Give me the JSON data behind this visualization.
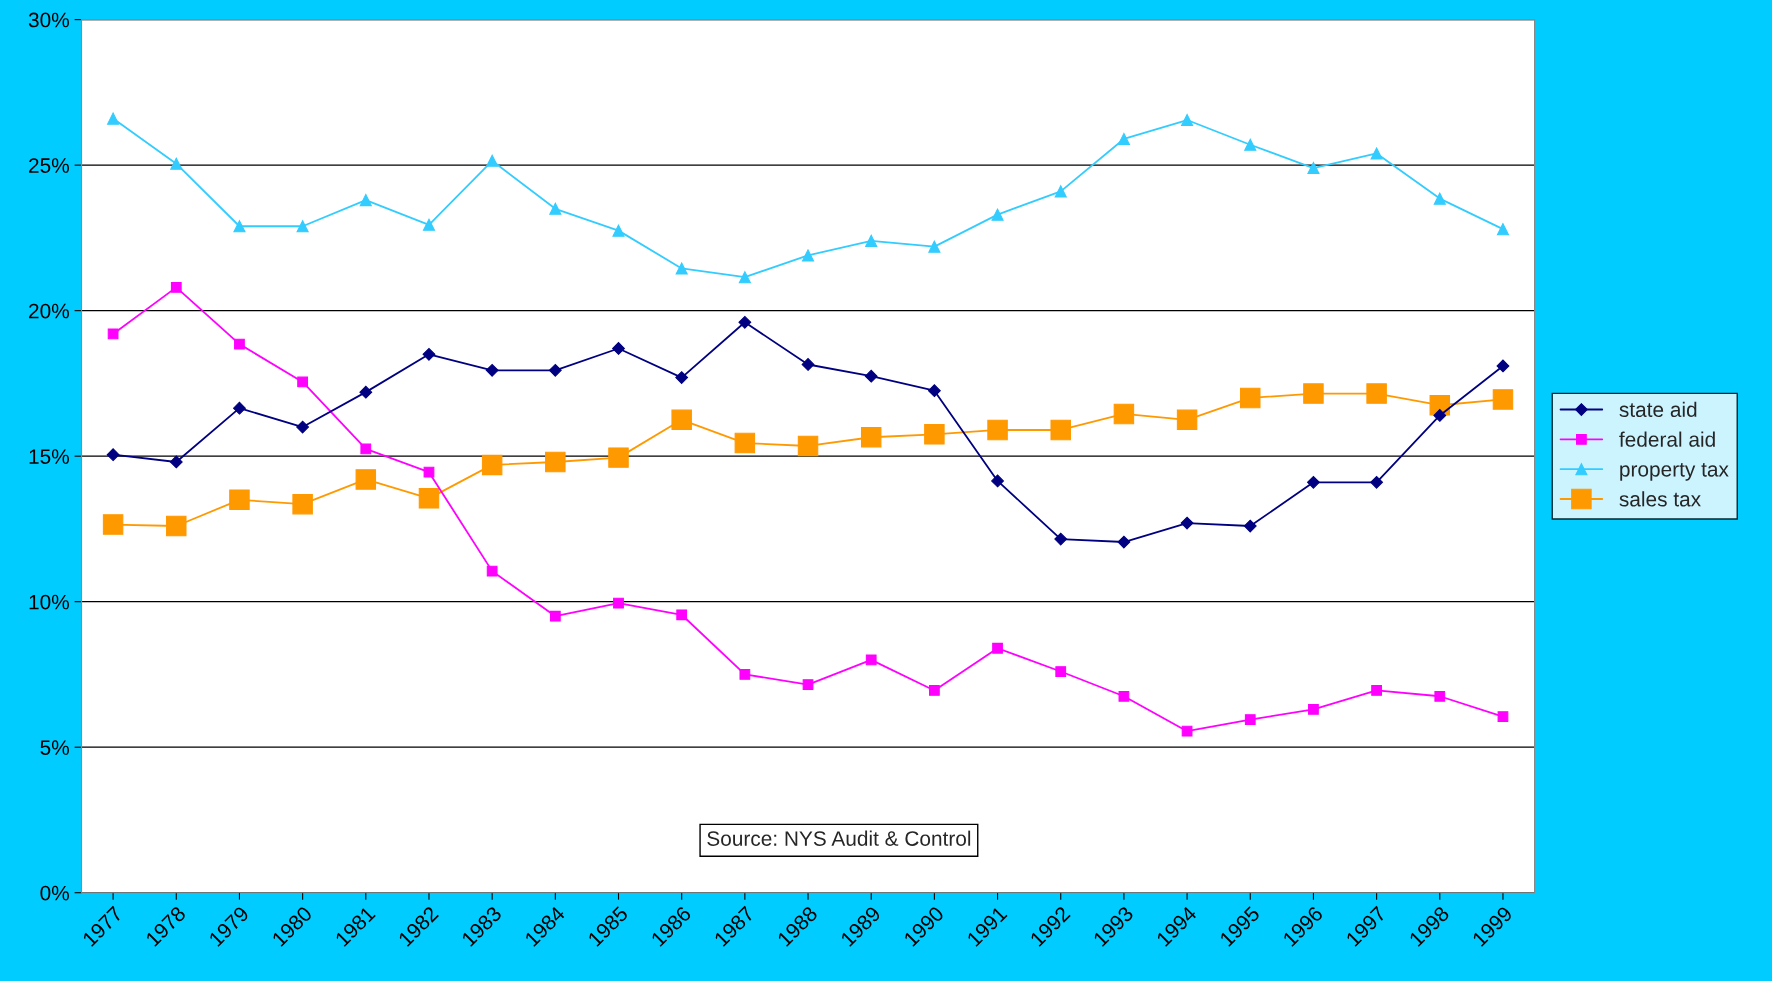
{
  "chart_data": {
    "type": "line",
    "categories": [
      "1977",
      "1978",
      "1979",
      "1980",
      "1981",
      "1982",
      "1983",
      "1984",
      "1985",
      "1986",
      "1987",
      "1988",
      "1989",
      "1990",
      "1991",
      "1992",
      "1993",
      "1994",
      "1995",
      "1996",
      "1997",
      "1998",
      "1999"
    ],
    "series": [
      {
        "name": "state aid",
        "color": "#000080",
        "marker": "diamond",
        "values": [
          15.05,
          14.8,
          16.65,
          16.0,
          17.2,
          18.5,
          17.95,
          17.95,
          18.7,
          17.7,
          19.6,
          18.15,
          17.75,
          17.25,
          14.15,
          12.15,
          12.05,
          12.7,
          12.6,
          14.1,
          14.1,
          16.4,
          18.1
        ]
      },
      {
        "name": "federal aid",
        "color": "#ff00ff",
        "marker": "square",
        "values": [
          19.2,
          20.8,
          18.85,
          17.55,
          15.25,
          14.45,
          11.05,
          9.5,
          9.95,
          9.55,
          7.5,
          7.15,
          8.0,
          6.95,
          8.4,
          7.6,
          6.75,
          5.55,
          5.95,
          6.3,
          6.95,
          6.75,
          6.05
        ]
      },
      {
        "name": "property tax",
        "color": "#33ccff",
        "marker": "triangle",
        "values": [
          26.6,
          25.05,
          22.9,
          22.9,
          23.8,
          22.95,
          25.15,
          23.5,
          22.75,
          21.45,
          21.15,
          21.9,
          22.4,
          22.2,
          23.3,
          24.1,
          25.9,
          26.55,
          25.7,
          24.9,
          25.4,
          23.85,
          22.8
        ]
      },
      {
        "name": "sales tax",
        "color": "#ff9900",
        "marker": "square",
        "values": [
          12.65,
          12.6,
          13.5,
          13.35,
          14.2,
          13.55,
          14.7,
          14.8,
          14.95,
          16.25,
          15.45,
          15.35,
          15.65,
          15.75,
          15.9,
          15.9,
          16.45,
          16.25,
          17.0,
          17.15,
          17.15,
          16.75,
          16.95
        ]
      }
    ],
    "ylim": [
      0,
      30
    ],
    "yticks": [
      {
        "value": 0,
        "label": "0%"
      },
      {
        "value": 5,
        "label": "5%"
      },
      {
        "value": 10,
        "label": "10%"
      },
      {
        "value": 15,
        "label": "15%"
      },
      {
        "value": 20,
        "label": "20%"
      },
      {
        "value": 25,
        "label": "25%"
      },
      {
        "value": 30,
        "label": "30%"
      }
    ],
    "grid": "y",
    "legend": "right",
    "line_style": "solid",
    "annotations": [
      "Source: NYS Audit & Control"
    ]
  }
}
